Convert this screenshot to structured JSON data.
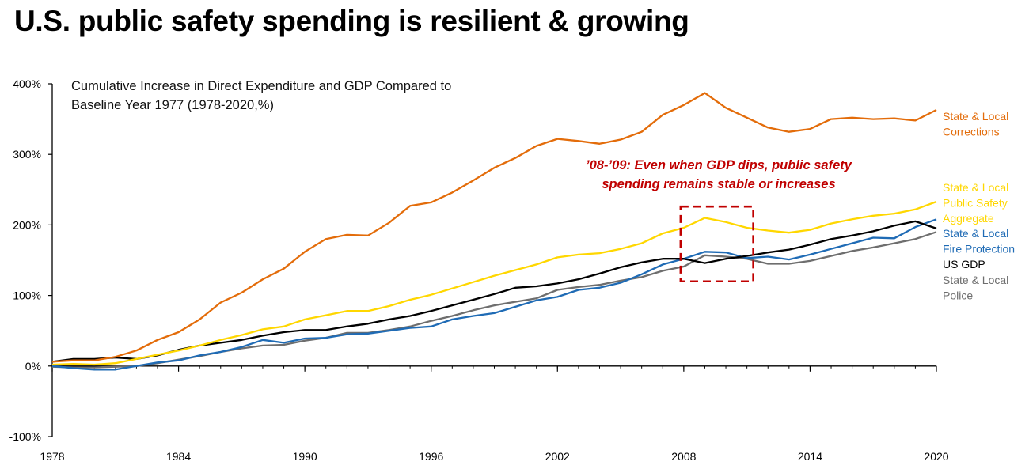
{
  "title": "U.S. public safety spending is resilient & growing",
  "chart_data": {
    "type": "line",
    "subtitle_lines": [
      "Cumulative Increase in Direct Expenditure and GDP Compared to",
      "Baseline Year 1977 (1978-2020,%)"
    ],
    "x": [
      1978,
      1979,
      1980,
      1981,
      1982,
      1983,
      1984,
      1985,
      1986,
      1987,
      1988,
      1989,
      1990,
      1991,
      1992,
      1993,
      1994,
      1995,
      1996,
      1997,
      1998,
      1999,
      2000,
      2001,
      2002,
      2003,
      2004,
      2005,
      2006,
      2007,
      2008,
      2009,
      2010,
      2011,
      2012,
      2013,
      2014,
      2015,
      2016,
      2017,
      2018,
      2019,
      2020
    ],
    "xticks": [
      1978,
      1984,
      1990,
      1996,
      2002,
      2008,
      2014,
      2020
    ],
    "xtick_labels": [
      "1978",
      "1984",
      "1990",
      "1996",
      "2002",
      "2008",
      "2014",
      "2020"
    ],
    "ylim": [
      -100,
      400
    ],
    "yticks": [
      -100,
      0,
      100,
      200,
      300,
      400
    ],
    "ytick_labels": [
      "-100%",
      "0%",
      "100%",
      "200%",
      "300%",
      "400%"
    ],
    "series": [
      {
        "name": "State & Local Corrections",
        "label_lines": [
          "State & Local",
          "Corrections"
        ],
        "color": "#e36c0a",
        "values": [
          6,
          8,
          8,
          13,
          22,
          37,
          48,
          66,
          90,
          104,
          123,
          138,
          162,
          180,
          186,
          185,
          203,
          227,
          232,
          246,
          263,
          281,
          295,
          312,
          322,
          319,
          315,
          321,
          332,
          356,
          370,
          387,
          366,
          352,
          338,
          332,
          336,
          350,
          352,
          350,
          351,
          348,
          363
        ]
      },
      {
        "name": "State & Local Public Safety Aggregate",
        "label_lines": [
          "State & Local",
          "Public Safety",
          "Aggregate"
        ],
        "color": "#ffd700",
        "values": [
          2,
          3,
          2,
          4,
          10,
          16,
          22,
          29,
          37,
          44,
          52,
          56,
          66,
          72,
          78,
          78,
          85,
          94,
          101,
          110,
          119,
          128,
          136,
          144,
          154,
          158,
          160,
          166,
          174,
          188,
          196,
          210,
          204,
          196,
          192,
          189,
          193,
          202,
          208,
          213,
          216,
          222,
          233
        ]
      },
      {
        "name": "State & Local Fire Protection",
        "label_lines": [
          "State & Local",
          "Fire Protection"
        ],
        "color": "#1f6bb5",
        "values": [
          0,
          -3,
          -5,
          -5,
          0,
          5,
          8,
          15,
          20,
          27,
          37,
          33,
          39,
          40,
          45,
          46,
          50,
          54,
          56,
          66,
          71,
          75,
          84,
          93,
          98,
          108,
          111,
          118,
          130,
          144,
          152,
          162,
          161,
          153,
          155,
          151,
          158,
          166,
          174,
          182,
          181,
          197,
          208
        ]
      },
      {
        "name": "US GDP",
        "label_lines": [
          "US GDP"
        ],
        "color": "#000000",
        "values": [
          6,
          10,
          10,
          12,
          10,
          15,
          23,
          29,
          33,
          37,
          43,
          48,
          51,
          51,
          56,
          60,
          66,
          71,
          78,
          86,
          94,
          102,
          111,
          113,
          117,
          123,
          131,
          140,
          147,
          152,
          152,
          146,
          152,
          156,
          161,
          165,
          172,
          180,
          185,
          191,
          199,
          205,
          195
        ]
      },
      {
        "name": "State & Local Police",
        "label_lines": [
          "State & Local",
          "Police"
        ],
        "color": "#6e6e6e",
        "values": [
          -1,
          -2,
          -2,
          -1,
          0,
          4,
          9,
          14,
          20,
          25,
          29,
          30,
          36,
          40,
          47,
          47,
          51,
          56,
          64,
          71,
          79,
          86,
          91,
          96,
          108,
          112,
          115,
          121,
          126,
          135,
          141,
          157,
          155,
          152,
          145,
          145,
          149,
          156,
          163,
          168,
          174,
          180,
          190
        ]
      }
    ],
    "annotation": {
      "text_lines": [
        "’08-’09: Even when GDP dips, public safety",
        "spending remains stable or increases"
      ],
      "x_range": [
        2008,
        2011
      ],
      "y_range": [
        120,
        226
      ],
      "color": "#c00000"
    }
  }
}
